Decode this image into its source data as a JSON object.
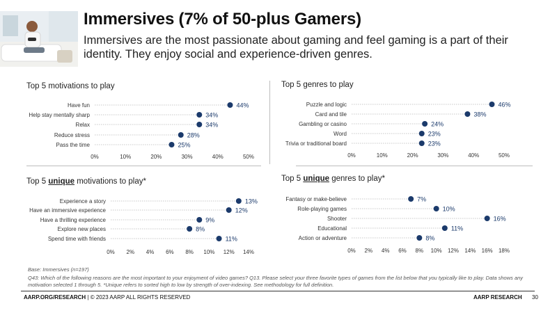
{
  "slide": {
    "title": "Immersives (7% of 50-plus Gamers)",
    "subtitle": "Immersives are the most passionate about gaming and feel gaming is a part of their identity. They enjoy social and experience-driven genres."
  },
  "colors": {
    "dot": "#1b3a6b",
    "line": "#c8c8c8",
    "label": "#1b3a6b"
  },
  "chart_data": [
    {
      "id": "motivations",
      "type": "scatter",
      "title_prefix": "Top 5 motivations to play",
      "title_emph": "",
      "title_suffix": "",
      "categories": [
        "Have fun",
        "Help stay mentally sharp",
        "Relax",
        "Reduce stress",
        "Pass the time"
      ],
      "values": [
        44,
        34,
        34,
        28,
        25
      ],
      "value_labels": [
        "44%",
        "34%",
        "34%",
        "28%",
        "25%"
      ],
      "xticks": [
        "0%",
        "10%",
        "20%",
        "30%",
        "40%",
        "50%"
      ],
      "xlim": [
        0,
        50
      ]
    },
    {
      "id": "genres",
      "type": "scatter",
      "title_prefix": "Top 5 genres to play",
      "title_emph": "",
      "title_suffix": "",
      "categories": [
        "Puzzle and logic",
        "Card and tile",
        "Gambling or casino",
        "Word",
        "Trivia or traditional board"
      ],
      "values": [
        46,
        38,
        24,
        23,
        23
      ],
      "value_labels": [
        "46%",
        "38%",
        "24%",
        "23%",
        "23%"
      ],
      "xticks": [
        "0%",
        "10%",
        "20%",
        "30%",
        "40%",
        "50%"
      ],
      "xlim": [
        0,
        50
      ]
    },
    {
      "id": "unique-motivations",
      "type": "scatter",
      "title_prefix": "Top 5 ",
      "title_emph": "unique",
      "title_suffix": " motivations to play*",
      "categories": [
        "Experience a story",
        "Have an immersive experience",
        "Have a thrilling experience",
        "Explore new places",
        "Spend time with friends"
      ],
      "values": [
        13,
        12,
        9,
        8,
        11
      ],
      "value_labels": [
        "13%",
        "12%",
        "9%",
        "8%",
        "11%"
      ],
      "xticks": [
        "0%",
        "2%",
        "4%",
        "6%",
        "8%",
        "10%",
        "12%",
        "14%"
      ],
      "xlim": [
        0,
        14
      ]
    },
    {
      "id": "unique-genres",
      "type": "scatter",
      "title_prefix": "Top 5 ",
      "title_emph": "unique",
      "title_suffix": " genres to play*",
      "categories": [
        "Fantasy or make-believe",
        "Role-playing games",
        "Shooter",
        "Educational",
        "Action or adventure"
      ],
      "values": [
        7,
        10,
        16,
        11,
        8
      ],
      "value_labels": [
        "7%",
        "10%",
        "16%",
        "11%",
        "8%"
      ],
      "xticks": [
        "0%",
        "2%",
        "4%",
        "6%",
        "8%",
        "10%",
        "12%",
        "14%",
        "16%",
        "18%"
      ],
      "xlim": [
        0,
        18
      ]
    }
  ],
  "footnotes": {
    "base": "Base: Immersives (n=197)",
    "questions": "Q43: Which of the following reasons are the most important to your enjoyment of video games?  Q13. Please select your three favorite types of games from the list below that you typically like to play. Data shows any motivation selected 1 through 5. *Unique refers to sorted high to low by strength of over-indexing. See methodology for full definition."
  },
  "footer": {
    "site": "AARP.ORG/RESEARCH",
    "copyright": " | © 2023 AARP ALL RIGHTS RESERVED",
    "brand": "AARP RESEARCH",
    "page": "30"
  }
}
